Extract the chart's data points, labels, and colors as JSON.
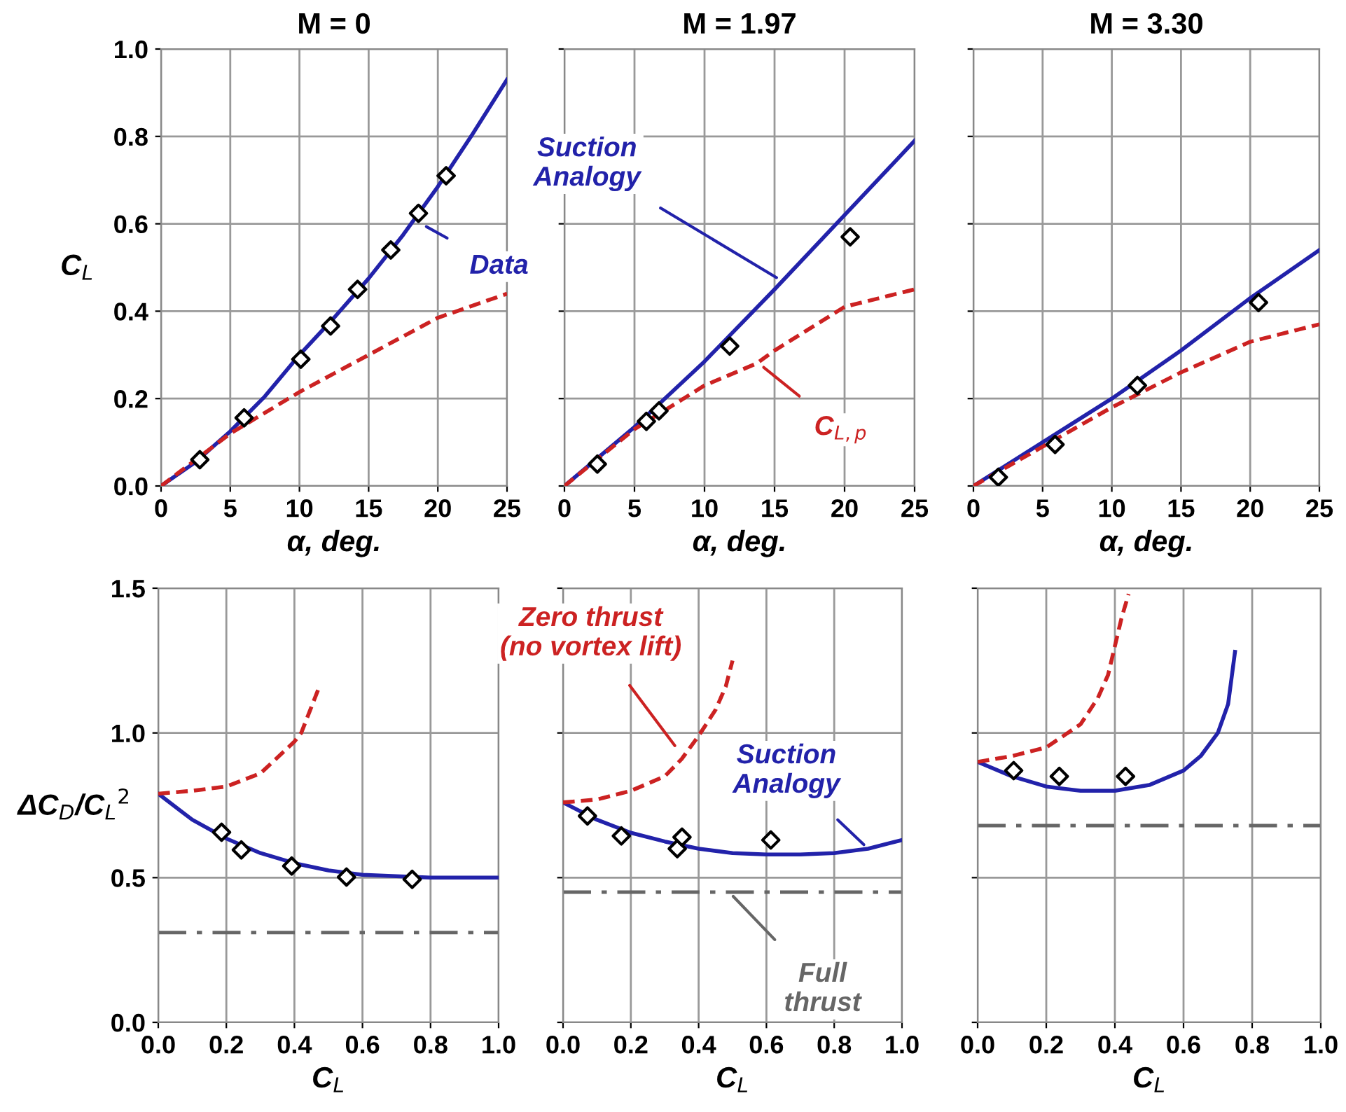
{
  "chart_data": [
    {
      "type": "line",
      "title": "M = 0",
      "xlabel": "α, deg.",
      "ylabel": "C$_{L}$",
      "xlim": [
        0,
        25
      ],
      "xticks": [
        0,
        5,
        10,
        15,
        20,
        25
      ],
      "ylim": [
        0,
        1
      ],
      "yticks": [
        {
          "value": 0,
          "label": "0.0"
        },
        {
          "value": 0.2,
          "label": "0.2"
        },
        {
          "value": 0.4,
          "label": "0.4"
        },
        {
          "value": 0.6,
          "label": "0.6"
        },
        {
          "value": 0.8,
          "label": "0.8"
        },
        {
          "value": 1,
          "label": "1.0"
        }
      ],
      "grid": true,
      "series": [
        {
          "color": "#2222aa",
          "line_style": "solid",
          "marker": "none",
          "x": [
            0,
            2.5,
            5,
            7.5,
            10,
            12.5,
            15,
            17.5,
            20,
            22.5,
            25
          ],
          "values": [
            0,
            0.055,
            0.125,
            0.205,
            0.3,
            0.385,
            0.475,
            0.575,
            0.685,
            0.805,
            0.93
          ]
        },
        {
          "color": "#cc2222",
          "line_style": "dashed",
          "marker": "none",
          "x": [
            0,
            2.5,
            5,
            10,
            15,
            20,
            25
          ],
          "values": [
            0,
            0.06,
            0.12,
            0.215,
            0.3,
            0.385,
            0.44
          ]
        },
        {
          "type": "scatter",
          "color": "#000000",
          "marker": "diamond",
          "x": [
            2.8,
            6.0,
            10.1,
            12.25,
            14.2,
            16.6,
            18.6,
            20.6
          ],
          "values": [
            0.06,
            0.156,
            0.29,
            0.366,
            0.45,
            0.54,
            0.624,
            0.71
          ]
        }
      ],
      "annotations": [
        {
          "text": "Data",
          "x": 18.8,
          "y": 0.6
        }
      ]
    },
    {
      "type": "line",
      "title": "M = 1.97",
      "xlabel": "α, deg.",
      "xlim": [
        0,
        25
      ],
      "xticks": [
        0,
        5,
        10,
        15,
        20,
        25
      ],
      "ylim": [
        0,
        1
      ],
      "yticks": [
        0,
        0.2,
        0.4,
        0.6,
        0.8,
        1
      ],
      "grid": true,
      "tick_labels": "x",
      "series": [
        {
          "color": "#2222aa",
          "line_style": "solid",
          "marker": "none",
          "x": [
            0,
            5,
            10,
            15,
            20,
            25
          ],
          "values": [
            0,
            0.135,
            0.285,
            0.45,
            0.62,
            0.79
          ]
        },
        {
          "color": "#cc2222",
          "line_style": "dashed",
          "marker": "none",
          "x": [
            0,
            5,
            10,
            13.7,
            15,
            20,
            25
          ],
          "values": [
            0,
            0.13,
            0.23,
            0.28,
            0.31,
            0.41,
            0.45
          ]
        },
        {
          "type": "scatter",
          "color": "#000000",
          "marker": "diamond",
          "x": [
            2.35,
            5.85,
            6.75,
            11.8,
            20.4
          ],
          "values": [
            0.05,
            0.148,
            0.172,
            0.32,
            0.57
          ]
        }
      ],
      "annotations": [
        {
          "text": "Suction\nAnalogy",
          "x": 15.5,
          "y": 0.47
        },
        {
          "text": "C$_{L,p}$",
          "x": 13.9,
          "y": 0.28
        }
      ]
    },
    {
      "type": "line",
      "title": "M = 3.30",
      "xlabel": "α, deg.",
      "xlim": [
        0,
        25
      ],
      "xticks": [
        0,
        5,
        10,
        15,
        20,
        25
      ],
      "ylim": [
        0,
        1
      ],
      "yticks": [
        0,
        0.2,
        0.4,
        0.6,
        0.8,
        1
      ],
      "grid": true,
      "tick_labels": "x",
      "series": [
        {
          "color": "#2222aa",
          "line_style": "solid",
          "marker": "none",
          "x": [
            0,
            5,
            10,
            15,
            20,
            25
          ],
          "values": [
            0,
            0.1,
            0.2,
            0.31,
            0.43,
            0.54
          ]
        },
        {
          "color": "#cc2222",
          "line_style": "dashed",
          "marker": "none",
          "x": [
            0,
            5,
            10,
            15,
            20,
            25
          ],
          "values": [
            0,
            0.09,
            0.18,
            0.26,
            0.33,
            0.37
          ]
        },
        {
          "type": "scatter",
          "color": "#000000",
          "marker": "diamond",
          "x": [
            1.8,
            5.9,
            11.85,
            20.6
          ],
          "values": [
            0.02,
            0.095,
            0.23,
            0.42
          ]
        }
      ]
    },
    {
      "type": "line",
      "xlabel": "C$_{L}$",
      "ylabel": "ΔC$_{D}$/C$_{L}$$^{2}$",
      "xlim": [
        0,
        1
      ],
      "xticks": [
        {
          "value": 0,
          "label": "0.0"
        },
        {
          "value": 0.2,
          "label": "0.2"
        },
        {
          "value": 0.4,
          "label": "0.4"
        },
        {
          "value": 0.6,
          "label": "0.6"
        },
        {
          "value": 0.8,
          "label": "0.8"
        },
        {
          "value": 1,
          "label": "1.0"
        }
      ],
      "ylim": [
        0,
        1.5
      ],
      "yticks": [
        {
          "value": 0,
          "label": "0.0"
        },
        {
          "value": 0.5,
          "label": "0.5"
        },
        {
          "value": 1,
          "label": "1.0"
        },
        {
          "value": 1.5,
          "label": "1.5"
        }
      ],
      "grid": true,
      "series": [
        {
          "color": "#2222aa",
          "line_style": "solid",
          "marker": "none",
          "x": [
            0,
            0.1,
            0.2,
            0.3,
            0.4,
            0.5,
            0.6,
            0.8,
            1.0
          ],
          "values": [
            0.79,
            0.7,
            0.635,
            0.585,
            0.55,
            0.525,
            0.51,
            0.5,
            0.5
          ]
        },
        {
          "color": "#cc2222",
          "line_style": "dashed",
          "marker": "none",
          "x": [
            0,
            0.1,
            0.2,
            0.3,
            0.4,
            0.42,
            0.47
          ],
          "values": [
            0.79,
            0.8,
            0.815,
            0.86,
            0.97,
            1.0,
            1.15
          ]
        },
        {
          "type": "scatter",
          "color": "#000000",
          "marker": "diamond",
          "x": [
            0.186,
            0.244,
            0.392,
            0.553,
            0.746
          ],
          "values": [
            0.657,
            0.596,
            0.54,
            0.502,
            0.494
          ]
        }
      ],
      "ref_lines": [
        {
          "axis": "y",
          "value": 0.31,
          "color": "#666666",
          "line_style": "dashdot"
        }
      ]
    },
    {
      "type": "line",
      "xlabel": "C$_{L}$",
      "xlim": [
        0,
        1
      ],
      "xticks": [
        {
          "value": 0,
          "label": "0.0"
        },
        {
          "value": 0.2,
          "label": "0.2"
        },
        {
          "value": 0.4,
          "label": "0.4"
        },
        {
          "value": 0.6,
          "label": "0.6"
        },
        {
          "value": 0.8,
          "label": "0.8"
        },
        {
          "value": 1,
          "label": "1.0"
        }
      ],
      "ylim": [
        0,
        1.5
      ],
      "yticks": [
        0,
        0.5,
        1,
        1.5
      ],
      "grid": true,
      "tick_labels": "x",
      "series": [
        {
          "color": "#2222aa",
          "line_style": "solid",
          "marker": "none",
          "x": [
            0,
            0.1,
            0.2,
            0.3,
            0.4,
            0.5,
            0.6,
            0.7,
            0.8,
            0.9,
            1.0
          ],
          "values": [
            0.76,
            0.7,
            0.655,
            0.625,
            0.6,
            0.585,
            0.58,
            0.58,
            0.585,
            0.6,
            0.63
          ]
        },
        {
          "color": "#cc2222",
          "line_style": "dashed",
          "marker": "none",
          "x": [
            0,
            0.1,
            0.2,
            0.3,
            0.35,
            0.4,
            0.45,
            0.48,
            0.5
          ],
          "values": [
            0.76,
            0.77,
            0.8,
            0.85,
            0.91,
            0.99,
            1.08,
            1.16,
            1.25
          ]
        },
        {
          "type": "scatter",
          "color": "#000000",
          "marker": "diamond",
          "x": [
            0.072,
            0.172,
            0.337,
            0.351,
            0.613
          ],
          "values": [
            0.713,
            0.644,
            0.6,
            0.64,
            0.63
          ]
        }
      ],
      "ref_lines": [
        {
          "axis": "y",
          "value": 0.45,
          "color": "#666666",
          "line_style": "dashdot"
        }
      ],
      "annotations": [
        {
          "text": "Zero thrust\n(no vortex lift)",
          "x": 0.34,
          "y": 0.94
        },
        {
          "text": "Suction\nAnalogy",
          "x": 0.9,
          "y": 0.6
        },
        {
          "text": "Full\nthrust",
          "x": 0.49,
          "y": 0.45
        }
      ]
    },
    {
      "type": "line",
      "xlabel": "C$_{L}$",
      "xlim": [
        0,
        1
      ],
      "xticks": [
        {
          "value": 0,
          "label": "0.0"
        },
        {
          "value": 0.2,
          "label": "0.2"
        },
        {
          "value": 0.4,
          "label": "0.4"
        },
        {
          "value": 0.6,
          "label": "0.6"
        },
        {
          "value": 0.8,
          "label": "0.8"
        },
        {
          "value": 1,
          "label": "1.0"
        }
      ],
      "ylim": [
        0,
        1.5
      ],
      "yticks": [
        0,
        0.5,
        1,
        1.5
      ],
      "grid": true,
      "tick_labels": "x",
      "series": [
        {
          "color": "#2222aa",
          "line_style": "solid",
          "marker": "none",
          "x": [
            0,
            0.1,
            0.2,
            0.3,
            0.4,
            0.5,
            0.6,
            0.65,
            0.7,
            0.73,
            0.75
          ],
          "values": [
            0.9,
            0.85,
            0.815,
            0.8,
            0.8,
            0.82,
            0.87,
            0.92,
            1.0,
            1.1,
            1.28
          ]
        },
        {
          "color": "#cc2222",
          "line_style": "dashed",
          "marker": "none",
          "x": [
            0,
            0.1,
            0.2,
            0.3,
            0.35,
            0.38,
            0.4,
            0.42,
            0.44
          ],
          "values": [
            0.9,
            0.92,
            0.95,
            1.03,
            1.12,
            1.2,
            1.3,
            1.4,
            1.48
          ]
        },
        {
          "type": "scatter",
          "color": "#000000",
          "marker": "diamond",
          "x": [
            0.105,
            0.238,
            0.431
          ],
          "values": [
            0.87,
            0.85,
            0.85
          ]
        }
      ],
      "ref_lines": [
        {
          "axis": "y",
          "value": 0.68,
          "color": "#666666",
          "line_style": "dashdot"
        }
      ]
    }
  ]
}
